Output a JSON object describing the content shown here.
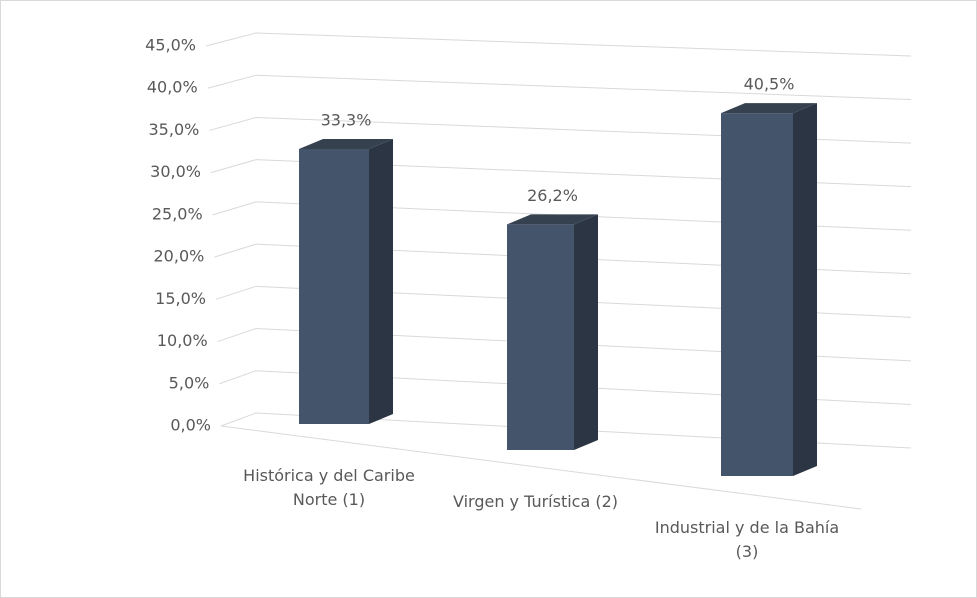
{
  "chart_data": {
    "type": "bar3d",
    "categories": [
      "Histórica y del Caribe Norte (1)",
      "Virgen y Turística (2)",
      "Industrial y de la Bahía (3)"
    ],
    "values": [
      33.3,
      26.2,
      40.5
    ],
    "value_labels": [
      "33,3%",
      "26,2%",
      "40,5%"
    ],
    "color": "#44546a",
    "ylim": [
      0,
      45
    ],
    "yticks": [
      {
        "value": 0,
        "label": "0,0%"
      },
      {
        "value": 5,
        "label": "5,0%"
      },
      {
        "value": 10,
        "label": "10,0%"
      },
      {
        "value": 15,
        "label": "15,0%"
      },
      {
        "value": 20,
        "label": "20,0%"
      },
      {
        "value": 25,
        "label": "25,0%"
      },
      {
        "value": 30,
        "label": "30,0%"
      },
      {
        "value": 35,
        "label": "35,0%"
      },
      {
        "value": 40,
        "label": "40,0%"
      },
      {
        "value": 45,
        "label": "45,0%"
      }
    ],
    "grid": true
  }
}
